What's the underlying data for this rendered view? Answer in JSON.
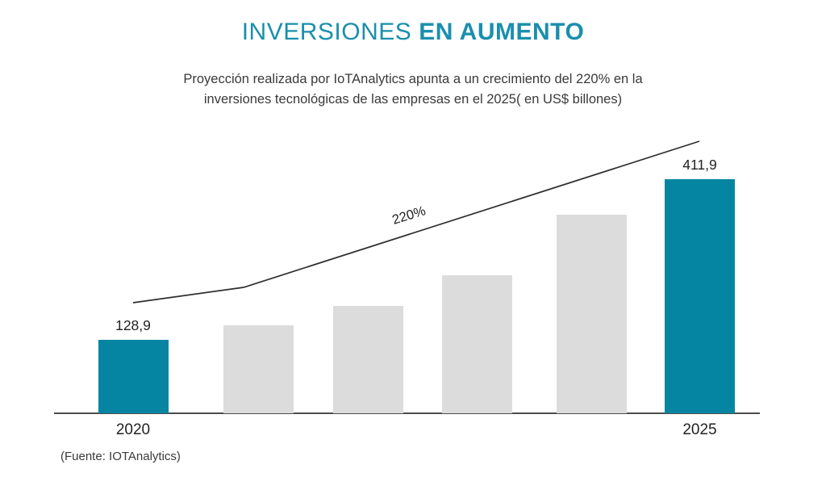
{
  "title": {
    "regular": "INVERSIONES",
    "bold": "EN AUMENTO"
  },
  "subtitle": {
    "line1": "Proyección realizada por IoTAnalytics apunta a un crecimiento del 220% en la",
    "line2": "inversiones tecnológicas de las empresas en el 2025( en US$ billones)"
  },
  "source": "(Fuente: IOTAnalytics)",
  "colors": {
    "accent_teal": "#0685a3",
    "title_teal": "#1a8fad",
    "bar_gray": "#dcdcdc",
    "axis": "#4d4d4d",
    "trend_line": "#2e2e2e",
    "text_dark": "#222222"
  },
  "chart_data": {
    "type": "bar",
    "categories": [
      "2020",
      "",
      "",
      "",
      "",
      "2025"
    ],
    "values": [
      128.9,
      155,
      189,
      243,
      349,
      411.9
    ],
    "value_labels": [
      "128,9",
      "",
      "",
      "",
      "",
      "411,9"
    ],
    "bar_colors": [
      "#0685a3",
      "#dcdcdc",
      "#dcdcdc",
      "#dcdcdc",
      "#dcdcdc",
      "#0685a3"
    ],
    "annotation": "220%",
    "title": "INVERSIONES EN AUMENTO",
    "unit": "US$ billones",
    "ylim": [
      0,
      440
    ],
    "grid": false,
    "legend": false,
    "note": "only first and last bars are labeled; middle values estimated from bar heights"
  }
}
